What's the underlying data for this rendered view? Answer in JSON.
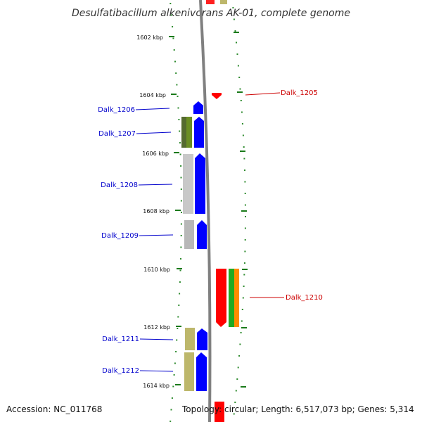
{
  "title": "Desulfatibacillum alkenivorans AK-01, complete genome",
  "accession": "Accession: NC_011768",
  "topology": "Topology: circular; Length: 6,517,073 bp; Genes: 5,314",
  "colors": {
    "forward_label": "#0000cc",
    "reverse_label": "#cc0000",
    "backbone": "#808080",
    "tick": "#2e8b2e",
    "forward_gene": "#0000ff",
    "reverse_gene": "#ff0000"
  },
  "kbp_labels": [
    "1602 kbp",
    "1604 kbp",
    "1606 kbp",
    "1608 kbp",
    "1610 kbp",
    "1612 kbp",
    "1614 kbp"
  ],
  "genes": [
    {
      "name": "Dalk_1205",
      "strand": "reverse",
      "color": "#ff0000",
      "cog_colors": []
    },
    {
      "name": "Dalk_1206",
      "strand": "forward",
      "color": "#0000ff",
      "cog_colors": []
    },
    {
      "name": "Dalk_1207",
      "strand": "forward",
      "color": "#0000ff",
      "cog_colors": [
        "#556b2f",
        "#6b8e23"
      ]
    },
    {
      "name": "Dalk_1208",
      "strand": "forward",
      "color": "#0000ff",
      "cog_colors": [
        "#c0c0c0"
      ]
    },
    {
      "name": "Dalk_1209",
      "strand": "forward",
      "color": "#0000ff",
      "cog_colors": [
        "#b0b0b0"
      ]
    },
    {
      "name": "Dalk_1210",
      "strand": "reverse",
      "color": "#ff0000",
      "cog_colors": [
        "#22aa22",
        "#ff8c00"
      ]
    },
    {
      "name": "Dalk_1211",
      "strand": "forward",
      "color": "#0000ff",
      "cog_colors": [
        "#bdb76b"
      ]
    },
    {
      "name": "Dalk_1212",
      "strand": "forward",
      "color": "#0000ff",
      "cog_colors": [
        "#bdb76b"
      ]
    }
  ]
}
